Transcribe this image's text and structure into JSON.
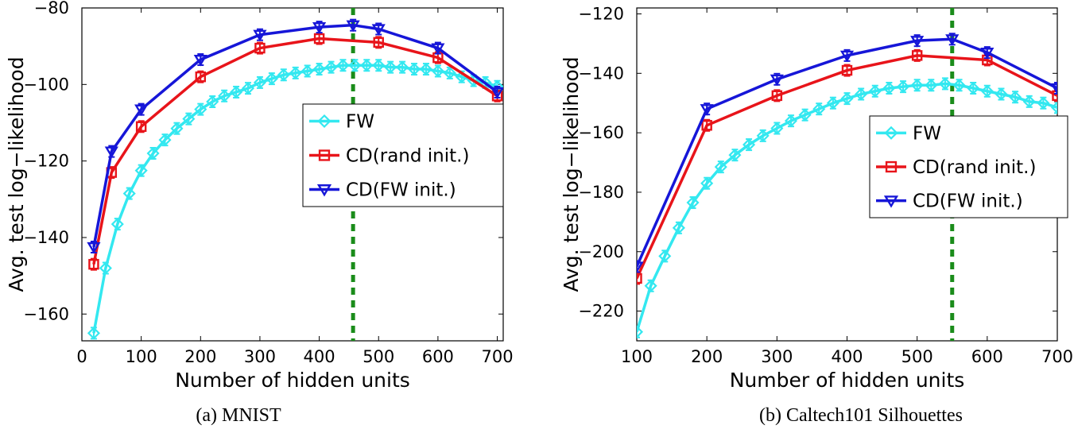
{
  "chart_data": [
    {
      "type": "line",
      "caption": "(a) MNIST",
      "xlabel": "Number of hidden units",
      "ylabel": "Avg. test log−likelihood",
      "xlim": [
        0,
        710
      ],
      "ylim": [
        -167,
        -80
      ],
      "xticks": [
        0,
        100,
        200,
        300,
        400,
        500,
        600,
        700
      ],
      "yticks": [
        -160,
        -140,
        -120,
        -100,
        -80
      ],
      "xtick_labels": [
        "0",
        "100",
        "200",
        "300",
        "400",
        "500",
        "600",
        "700"
      ],
      "ytick_labels": [
        "−160",
        "−140",
        "−120",
        "−100",
        "−80"
      ],
      "vline_x": 457,
      "legend_position": "right",
      "series": [
        {
          "name": "FW",
          "color": "#33e8f0",
          "marker": "diamond",
          "x": [
            20,
            40,
            60,
            80,
            100,
            120,
            140,
            160,
            180,
            200,
            220,
            240,
            260,
            280,
            300,
            320,
            340,
            360,
            380,
            400,
            420,
            440,
            460,
            480,
            500,
            520,
            540,
            560,
            580,
            600,
            620,
            640,
            660,
            680,
            700
          ],
          "y": [
            -165,
            -148,
            -136.5,
            -128.5,
            -122.5,
            -118,
            -114.5,
            -111.5,
            -109,
            -106.5,
            -104.5,
            -103,
            -102,
            -101,
            -99.5,
            -98.5,
            -97.5,
            -97,
            -96.5,
            -96,
            -95.5,
            -95,
            -95,
            -95,
            -95,
            -95.5,
            -95.5,
            -96,
            -96,
            -96.5,
            -97,
            -98,
            -99,
            -99.5,
            -100.5
          ]
        },
        {
          "name": "CD(rand init.)",
          "color": "#e8141a",
          "marker": "square",
          "x": [
            20,
            50,
            100,
            200,
            300,
            400,
            500,
            600,
            700
          ],
          "y": [
            -147,
            -123,
            -111,
            -98,
            -90.5,
            -88,
            -89,
            -93,
            -103
          ]
        },
        {
          "name": "CD(FW init.)",
          "color": "#1616d8",
          "marker": "triangle-down",
          "x": [
            20,
            50,
            100,
            200,
            300,
            400,
            457,
            500,
            600,
            700
          ],
          "y": [
            -142.5,
            -117.5,
            -106.5,
            -93.5,
            -87,
            -85,
            -84.5,
            -85.5,
            -90.5,
            -102
          ]
        }
      ]
    },
    {
      "type": "line",
      "caption": "(b) Caltech101 Silhouettes",
      "xlabel": "Number of hidden units",
      "ylabel": "Avg. test log−likelihood",
      "xlim": [
        100,
        700
      ],
      "ylim": [
        -230,
        -118
      ],
      "xticks": [
        100,
        200,
        300,
        400,
        500,
        600,
        700
      ],
      "yticks": [
        -220,
        -200,
        -180,
        -160,
        -140,
        -120
      ],
      "xtick_labels": [
        "100",
        "200",
        "300",
        "400",
        "500",
        "600",
        "700"
      ],
      "ytick_labels": [
        "−220",
        "−200",
        "−180",
        "−160",
        "−140",
        "−120"
      ],
      "vline_x": 550,
      "legend_position": "right",
      "series": [
        {
          "name": "FW",
          "color": "#33e8f0",
          "marker": "diamond",
          "x": [
            100,
            120,
            140,
            160,
            180,
            200,
            220,
            240,
            260,
            280,
            300,
            320,
            340,
            360,
            380,
            400,
            420,
            440,
            460,
            480,
            500,
            520,
            540,
            560,
            580,
            600,
            620,
            640,
            660,
            680,
            700
          ],
          "y": [
            -227,
            -211.5,
            -201.5,
            -192,
            -183.5,
            -177,
            -171.5,
            -167.5,
            -164,
            -161,
            -158.5,
            -156,
            -154,
            -152,
            -150,
            -148.5,
            -147,
            -146,
            -145,
            -144.5,
            -144,
            -144,
            -143.5,
            -144,
            -145,
            -146,
            -147,
            -148,
            -149.5,
            -150,
            -151.5
          ]
        },
        {
          "name": "CD(rand init.)",
          "color": "#e8141a",
          "marker": "square",
          "x": [
            100,
            200,
            300,
            400,
            500,
            600,
            700
          ],
          "y": [
            -209,
            -157.5,
            -147.5,
            -139,
            -134,
            -135.5,
            -147.5
          ]
        },
        {
          "name": "CD(FW init.)",
          "color": "#1616d8",
          "marker": "triangle-down",
          "x": [
            100,
            200,
            300,
            400,
            500,
            550,
            600,
            700
          ],
          "y": [
            -205,
            -152,
            -142,
            -134,
            -129,
            -128.5,
            -133,
            -145
          ]
        }
      ]
    }
  ]
}
